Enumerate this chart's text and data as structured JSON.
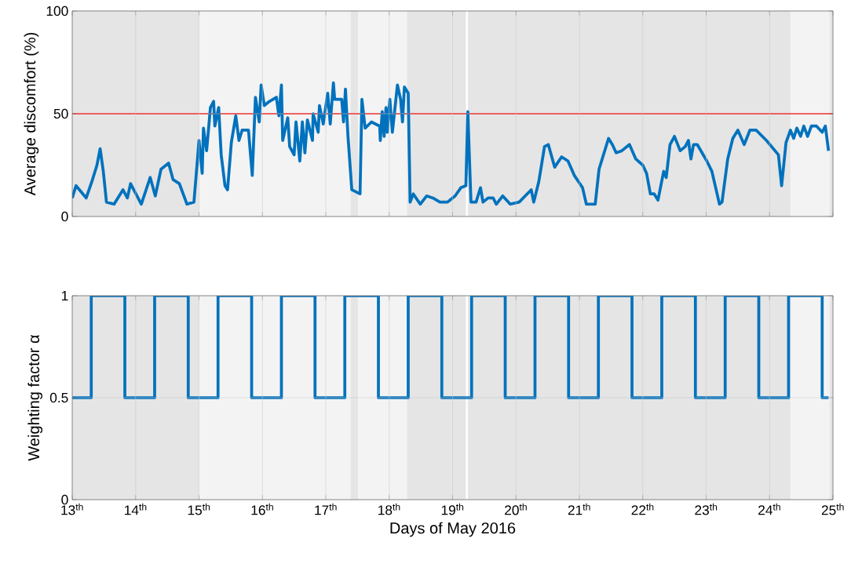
{
  "chart_data": [
    {
      "type": "line",
      "ylabel": "Average discomfort (%)",
      "xlim": [
        13,
        25
      ],
      "ylim": [
        0,
        100
      ],
      "yticks": [
        0,
        50,
        100
      ],
      "xticks": [
        13,
        14,
        15,
        16,
        17,
        18,
        19,
        20,
        21,
        22,
        23,
        24,
        25
      ],
      "tick_labels": "y",
      "grid": true,
      "ref_lines": [
        {
          "axis": "y",
          "value": 50,
          "color": "#ff0000"
        }
      ],
      "bands": [
        {
          "axis": "x",
          "from": 13,
          "to": 15.0,
          "color": "#e5e5e5"
        },
        {
          "axis": "x",
          "from": 15.0,
          "to": 17.39,
          "color": "#f3f3f3"
        },
        {
          "axis": "x",
          "from": 17.39,
          "to": 17.51,
          "color": "#e5e5e5"
        },
        {
          "axis": "x",
          "from": 17.51,
          "to": 18.28,
          "color": "#f3f3f3"
        },
        {
          "axis": "x",
          "from": 18.28,
          "to": 19.21,
          "color": "#e5e5e5"
        },
        {
          "axis": "x",
          "from": 19.24,
          "to": 24.33,
          "color": "#e5e5e5"
        },
        {
          "axis": "x",
          "from": 24.33,
          "to": 24.95,
          "color": "#f3f3f3"
        },
        {
          "axis": "x",
          "from": 24.95,
          "to": 25,
          "color": "#e5e5e5"
        }
      ],
      "series": [
        {
          "color": "#0072bd",
          "x": [
            13.0,
            13.06,
            13.14,
            13.22,
            13.31,
            13.39,
            13.44,
            13.49,
            13.54,
            13.66,
            13.8,
            13.87,
            13.92,
            14.09,
            14.23,
            14.31,
            14.4,
            14.52,
            14.59,
            14.69,
            14.75,
            14.81,
            14.92,
            15.0,
            15.05,
            15.07,
            15.12,
            15.18,
            15.23,
            15.25,
            15.31,
            15.35,
            15.41,
            15.45,
            15.51,
            15.58,
            15.63,
            15.68,
            15.78,
            15.84,
            15.89,
            15.95,
            15.98,
            16.03,
            16.07,
            16.11,
            16.22,
            16.26,
            16.3,
            16.32,
            16.4,
            16.43,
            16.5,
            16.53,
            16.59,
            16.63,
            16.67,
            16.71,
            16.79,
            16.8,
            16.88,
            16.9,
            16.96,
            17.03,
            17.07,
            17.12,
            17.14,
            17.25,
            17.28,
            17.31,
            17.35,
            17.41,
            17.54,
            17.57,
            17.62,
            17.72,
            17.85,
            17.86,
            17.89,
            17.92,
            17.95,
            17.97,
            18.01,
            18.05,
            18.13,
            18.18,
            18.21,
            18.24,
            18.3,
            18.33,
            18.38,
            18.49,
            18.59,
            18.69,
            18.8,
            18.92,
            19.04,
            19.13,
            19.21,
            19.24,
            19.29,
            19.37,
            19.44,
            19.48,
            19.56,
            19.64,
            19.69,
            19.79,
            19.91,
            20.05,
            20.24,
            20.28,
            20.36,
            20.45,
            20.51,
            20.61,
            20.72,
            20.82,
            20.92,
            21.05,
            21.11,
            21.25,
            21.31,
            21.46,
            21.52,
            21.58,
            21.67,
            21.79,
            21.89,
            22.0,
            22.06,
            22.12,
            22.18,
            22.24,
            22.33,
            22.37,
            22.43,
            22.5,
            22.59,
            22.67,
            22.72,
            22.76,
            22.8,
            22.86,
            23.01,
            23.09,
            23.21,
            23.25,
            23.34,
            23.42,
            23.5,
            23.6,
            23.69,
            23.79,
            23.95,
            24.14,
            24.19,
            24.26,
            24.33,
            24.38,
            24.43,
            24.49,
            24.54,
            24.6,
            24.66,
            24.74,
            24.83,
            24.88,
            24.93
          ],
          "values": [
            9,
            15,
            12,
            9,
            17,
            25,
            33,
            22,
            7,
            6,
            13,
            9,
            16,
            6,
            19,
            10,
            23,
            26,
            18,
            16,
            11,
            6,
            7,
            37,
            21,
            43,
            32,
            53,
            56,
            44,
            53,
            30,
            15,
            13,
            36,
            49,
            37,
            42,
            42,
            20,
            58,
            46,
            64,
            54,
            55,
            56,
            58,
            49,
            64,
            37,
            48,
            34,
            30,
            46,
            27,
            46,
            31,
            47,
            37,
            50,
            41,
            54,
            45,
            60,
            45,
            65,
            57,
            57,
            46,
            62,
            39,
            13,
            11,
            57,
            43,
            46,
            44,
            37,
            51,
            39,
            53,
            41,
            57,
            41,
            64,
            57,
            46,
            63,
            60,
            7,
            11,
            6,
            10,
            9,
            7,
            7,
            10,
            14,
            15,
            51,
            7,
            7,
            14,
            7,
            9,
            9,
            6,
            10,
            6,
            7,
            13,
            7,
            17,
            34,
            35,
            24,
            29,
            27,
            20,
            14,
            6,
            6,
            23,
            38,
            35,
            31,
            32,
            35,
            28,
            25,
            21,
            11,
            11,
            8,
            22,
            19,
            35,
            39,
            32,
            34,
            37,
            28,
            35,
            35,
            27,
            22,
            6,
            7,
            28,
            38,
            42,
            35,
            42,
            42,
            37,
            30,
            15,
            36,
            42,
            38,
            43,
            39,
            44,
            39,
            44,
            44,
            41,
            44,
            32
          ]
        }
      ]
    },
    {
      "type": "step",
      "xlabel": "Days of May 2016",
      "ylabel": "Weighting factor α",
      "xlim": [
        13,
        25
      ],
      "ylim": [
        0,
        1
      ],
      "yticks": [
        0,
        0.5,
        1
      ],
      "grid": true,
      "xticks": [
        {
          "value": 13,
          "label": "13$^{th}$"
        },
        {
          "value": 14,
          "label": "14$^{th}$"
        },
        {
          "value": 15,
          "label": "15$^{th}$"
        },
        {
          "value": 16,
          "label": "16$^{th}$"
        },
        {
          "value": 17,
          "label": "17$^{th}$"
        },
        {
          "value": 18,
          "label": "18$^{th}$"
        },
        {
          "value": 19,
          "label": "19$^{th}$"
        },
        {
          "value": 20,
          "label": "20$^{th}$"
        },
        {
          "value": 21,
          "label": "21$^{th}$"
        },
        {
          "value": 22,
          "label": "22$^{th}$"
        },
        {
          "value": 23,
          "label": "23$^{th}$"
        },
        {
          "value": 24,
          "label": "24$^{th}$"
        },
        {
          "value": 25,
          "label": "25$^{th}$"
        }
      ],
      "bands": [
        {
          "axis": "x",
          "from": 13,
          "to": 15.0,
          "color": "#e5e5e5"
        },
        {
          "axis": "x",
          "from": 15.0,
          "to": 17.39,
          "color": "#f3f3f3"
        },
        {
          "axis": "x",
          "from": 17.39,
          "to": 17.51,
          "color": "#e5e5e5"
        },
        {
          "axis": "x",
          "from": 17.51,
          "to": 18.28,
          "color": "#f3f3f3"
        },
        {
          "axis": "x",
          "from": 18.28,
          "to": 19.21,
          "color": "#e5e5e5"
        },
        {
          "axis": "x",
          "from": 19.24,
          "to": 24.33,
          "color": "#e5e5e5"
        },
        {
          "axis": "x",
          "from": 24.33,
          "to": 24.95,
          "color": "#f3f3f3"
        },
        {
          "axis": "x",
          "from": 24.95,
          "to": 25,
          "color": "#e5e5e5"
        }
      ],
      "series": [
        {
          "color": "#0072bd",
          "x": [
            13,
            13.3,
            13.83,
            14.3,
            14.83,
            15.3,
            15.83,
            16.3,
            16.83,
            17.3,
            17.83,
            18.3,
            18.83,
            19.3,
            19.83,
            20.3,
            20.83,
            21.3,
            21.83,
            22.3,
            22.83,
            23.3,
            23.83,
            24.3,
            24.83,
            24.93
          ],
          "values": [
            0.5,
            1,
            0.5,
            1,
            0.5,
            1,
            0.5,
            1,
            0.5,
            1,
            0.5,
            1,
            0.5,
            1,
            0.5,
            1,
            0.5,
            1,
            0.5,
            1,
            0.5,
            1,
            0.5,
            1,
            0.5,
            0.5
          ]
        }
      ]
    }
  ]
}
